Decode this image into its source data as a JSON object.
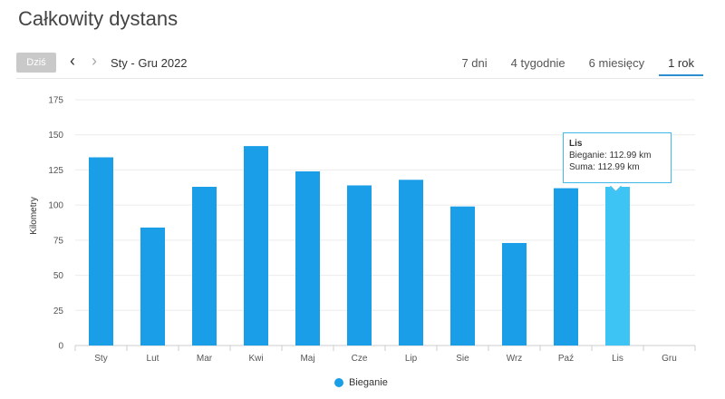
{
  "page_title": "Całkowity dystans",
  "toolbar": {
    "today_label": "Dziś",
    "prev_icon": "‹",
    "next_icon": "›",
    "range_label": "Sty - Gru 2022"
  },
  "tabs": [
    {
      "label": "7 dni",
      "active": false
    },
    {
      "label": "4 tygodnie",
      "active": false
    },
    {
      "label": "6 miesięcy",
      "active": false
    },
    {
      "label": "1 rok",
      "active": true
    }
  ],
  "tooltip": {
    "title": "Lis",
    "line1": "Bieganie: 112.99 km",
    "line2": "Suma: 112.99 km"
  },
  "legend": {
    "label": "Bieganie"
  },
  "colors": {
    "bar": "#1a9ee8",
    "bar_highlight": "#3ec3f5",
    "tooltip_border": "#40b8ea"
  },
  "chart_data": {
    "type": "bar",
    "categories": [
      "Sty",
      "Lut",
      "Mar",
      "Kwi",
      "Maj",
      "Cze",
      "Lip",
      "Sie",
      "Wrz",
      "Paź",
      "Lis",
      "Gru"
    ],
    "series": [
      {
        "name": "Bieganie",
        "values": [
          134,
          84,
          113,
          142,
          124,
          114,
          118,
          99,
          73,
          112,
          112.99,
          null
        ]
      }
    ],
    "highlight_category": "Lis",
    "ylabel": "Kilometry",
    "ylim": [
      0,
      175
    ],
    "yticks": [
      0,
      25,
      50,
      75,
      100,
      125,
      150,
      175
    ],
    "grid": true,
    "legend_position": "bottom"
  }
}
